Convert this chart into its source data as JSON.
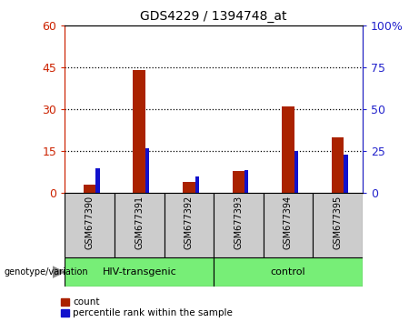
{
  "title": "GDS4229 / 1394748_at",
  "categories": [
    "GSM677390",
    "GSM677391",
    "GSM677392",
    "GSM677393",
    "GSM677394",
    "GSM677395"
  ],
  "count_values": [
    3,
    44,
    4,
    8,
    31,
    20
  ],
  "percentile_values": [
    15,
    27,
    10,
    14,
    25,
    23
  ],
  "left_ylim": [
    0,
    60
  ],
  "right_ylim": [
    0,
    100
  ],
  "left_yticks": [
    0,
    15,
    30,
    45,
    60
  ],
  "right_yticks": [
    0,
    25,
    50,
    75,
    100
  ],
  "left_yticklabels": [
    "0",
    "15",
    "30",
    "45",
    "60"
  ],
  "right_yticklabels": [
    "0",
    "25",
    "50",
    "75",
    "100%"
  ],
  "count_color": "#aa2200",
  "percentile_color": "#1111cc",
  "count_bar_width": 0.25,
  "percentile_bar_width": 0.08,
  "groups": [
    {
      "label": "HIV-transgenic",
      "start": 0,
      "end": 3
    },
    {
      "label": "control",
      "start": 3,
      "end": 6
    }
  ],
  "group_label": "genotype/variation",
  "legend_count_label": "count",
  "legend_percentile_label": "percentile rank within the sample",
  "left_axis_color": "#cc2200",
  "right_axis_color": "#2222cc",
  "sample_bg_color": "#cccccc",
  "group_bg_color": "#77ee77",
  "plot_bg_color": "#ffffff"
}
